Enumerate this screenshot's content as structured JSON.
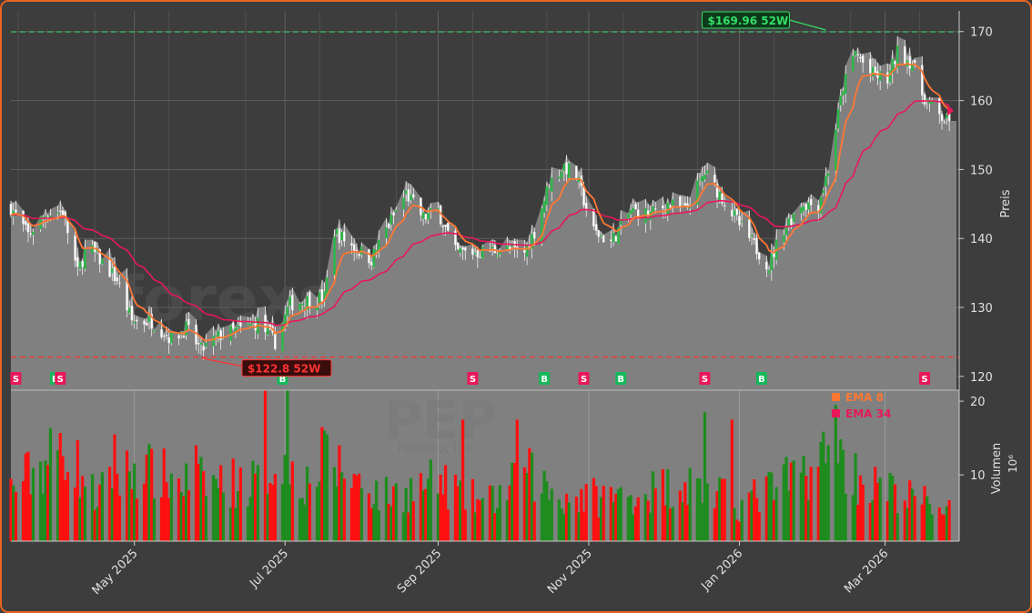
{
  "chart_data": {
    "type": "candlestick",
    "ticker": "PEP",
    "watermark": "forexsignale.trade",
    "company": "Pepsico, Inc.",
    "price_axis": {
      "label": "Preis",
      "ticks": [
        120,
        130,
        140,
        150,
        160,
        170
      ],
      "ylim": [
        118,
        173
      ]
    },
    "volume_axis": {
      "label": "Volumen",
      "unit": "10⁶",
      "ticks": [
        10,
        20
      ],
      "ylim": [
        1,
        21.5
      ]
    },
    "x_axis": {
      "ticks": [
        {
          "date": "2025-05-01",
          "label": "May 2025"
        },
        {
          "date": "2025-07-01",
          "label": "Jul 2025"
        },
        {
          "date": "2025-09-01",
          "label": "Sep 2025"
        },
        {
          "date": "2025-11-01",
          "label": "Nov 2025"
        },
        {
          "date": "2026-01-01",
          "label": "Jan 2026"
        },
        {
          "date": "2026-03-01",
          "label": "Mar 2026"
        }
      ],
      "xlim": [
        "2025-03-12",
        "2026-03-31"
      ]
    },
    "high_52w": {
      "label": "$169.96 52W",
      "value": 169.96,
      "date": "2026-02-05"
    },
    "low_52w": {
      "label": "$122.8 52W",
      "value": 122.8,
      "date": "2025-05-28"
    },
    "legend": [
      {
        "name": "EMA 8",
        "color": "#ff7733"
      },
      {
        "name": "EMA 34",
        "color": "#e8185a"
      }
    ],
    "colors": {
      "up": "#1e8c1e",
      "down": "#ff1010",
      "ema8": "#ff7733",
      "ema34": "#e8185a",
      "buy": "#16b85a",
      "sell": "#e8185a",
      "area": "#808080"
    },
    "signals": [
      {
        "date": "2025-03-14",
        "type": "S"
      },
      {
        "date": "2025-03-30",
        "type": "B"
      },
      {
        "date": "2025-04-01",
        "type": "S"
      },
      {
        "date": "2025-06-30",
        "type": "B"
      },
      {
        "date": "2025-09-15",
        "type": "S"
      },
      {
        "date": "2025-10-14",
        "type": "B"
      },
      {
        "date": "2025-10-30",
        "type": "S"
      },
      {
        "date": "2025-11-14",
        "type": "B"
      },
      {
        "date": "2025-12-18",
        "type": "S"
      },
      {
        "date": "2026-01-10",
        "type": "B"
      },
      {
        "date": "2026-03-17",
        "type": "S"
      }
    ],
    "close_anchors": [
      [
        "2025-03-12",
        144.5
      ],
      [
        "2025-03-19",
        140.5
      ],
      [
        "2025-03-26",
        143.5
      ],
      [
        "2025-04-02",
        144
      ],
      [
        "2025-04-08",
        135
      ],
      [
        "2025-04-12",
        139
      ],
      [
        "2025-04-18",
        136.5
      ],
      [
        "2025-04-24",
        134
      ],
      [
        "2025-04-30",
        128
      ],
      [
        "2025-05-08",
        128
      ],
      [
        "2025-05-16",
        125.5
      ],
      [
        "2025-05-22",
        127
      ],
      [
        "2025-05-28",
        123.8
      ],
      [
        "2025-06-05",
        126
      ],
      [
        "2025-06-13",
        126.8
      ],
      [
        "2025-06-20",
        127.8
      ],
      [
        "2025-06-27",
        125
      ],
      [
        "2025-07-03",
        130.5
      ],
      [
        "2025-07-10",
        131
      ],
      [
        "2025-07-17",
        131.5
      ],
      [
        "2025-07-21",
        141
      ],
      [
        "2025-07-28",
        139
      ],
      [
        "2025-08-05",
        137
      ],
      [
        "2025-08-12",
        142
      ],
      [
        "2025-08-19",
        146.5
      ],
      [
        "2025-08-26",
        143
      ],
      [
        "2025-09-01",
        144
      ],
      [
        "2025-09-08",
        138
      ],
      [
        "2025-09-18",
        138
      ],
      [
        "2025-09-26",
        138.5
      ],
      [
        "2025-10-06",
        138
      ],
      [
        "2025-10-10",
        141
      ],
      [
        "2025-10-16",
        148
      ],
      [
        "2025-10-22",
        150.5
      ],
      [
        "2025-10-27",
        149
      ],
      [
        "2025-11-03",
        141
      ],
      [
        "2025-11-10",
        139.5
      ],
      [
        "2025-11-18",
        144
      ],
      [
        "2025-11-26",
        143.5
      ],
      [
        "2025-12-03",
        145
      ],
      [
        "2025-12-10",
        144
      ],
      [
        "2025-12-18",
        149.5
      ],
      [
        "2025-12-25",
        146
      ],
      [
        "2026-01-01",
        142
      ],
      [
        "2026-01-08",
        138.5
      ],
      [
        "2026-01-13",
        136
      ],
      [
        "2026-01-18",
        141
      ],
      [
        "2026-01-26",
        145
      ],
      [
        "2026-02-02",
        145
      ],
      [
        "2026-02-06",
        150
      ],
      [
        "2026-02-12",
        162
      ],
      [
        "2026-02-17",
        167
      ],
      [
        "2026-02-23",
        164
      ],
      [
        "2026-03-02",
        163
      ],
      [
        "2026-03-06",
        167
      ],
      [
        "2026-03-12",
        165.5
      ],
      [
        "2026-03-16",
        161
      ],
      [
        "2026-03-22",
        158
      ],
      [
        "2026-03-28",
        156.5
      ],
      [
        "2026-03-31",
        154
      ]
    ],
    "volume_anchors": [
      [
        "2025-03-12",
        8
      ],
      [
        "2025-04-03",
        14
      ],
      [
        "2025-04-15",
        7
      ],
      [
        "2025-05-01",
        11
      ],
      [
        "2025-05-20",
        9
      ],
      [
        "2025-06-20",
        9
      ],
      [
        "2025-06-30",
        13
      ],
      [
        "2025-07-10",
        9
      ],
      [
        "2025-07-18",
        12
      ],
      [
        "2025-08-10",
        7
      ],
      [
        "2025-09-01",
        9
      ],
      [
        "2025-09-20",
        6
      ],
      [
        "2025-10-08",
        10
      ],
      [
        "2025-10-20",
        7
      ],
      [
        "2025-11-15",
        7
      ],
      [
        "2025-12-10",
        9
      ],
      [
        "2026-01-01",
        6
      ],
      [
        "2026-01-20",
        9
      ],
      [
        "2026-02-08",
        13
      ],
      [
        "2026-02-20",
        9
      ],
      [
        "2026-03-10",
        7
      ],
      [
        "2026-03-31",
        5
      ]
    ],
    "volume_spikes": [
      [
        "2025-06-23",
        23.5
      ],
      [
        "2025-07-02",
        27
      ],
      [
        "2025-07-16",
        16.5
      ],
      [
        "2025-09-11",
        17.5
      ],
      [
        "2025-10-03",
        17.5
      ],
      [
        "2025-12-18",
        18.5
      ],
      [
        "2025-12-28",
        17.5
      ],
      [
        "2026-02-08",
        19.5
      ],
      [
        "2025-04-23",
        15.5
      ],
      [
        "2025-05-25",
        14
      ]
    ]
  }
}
